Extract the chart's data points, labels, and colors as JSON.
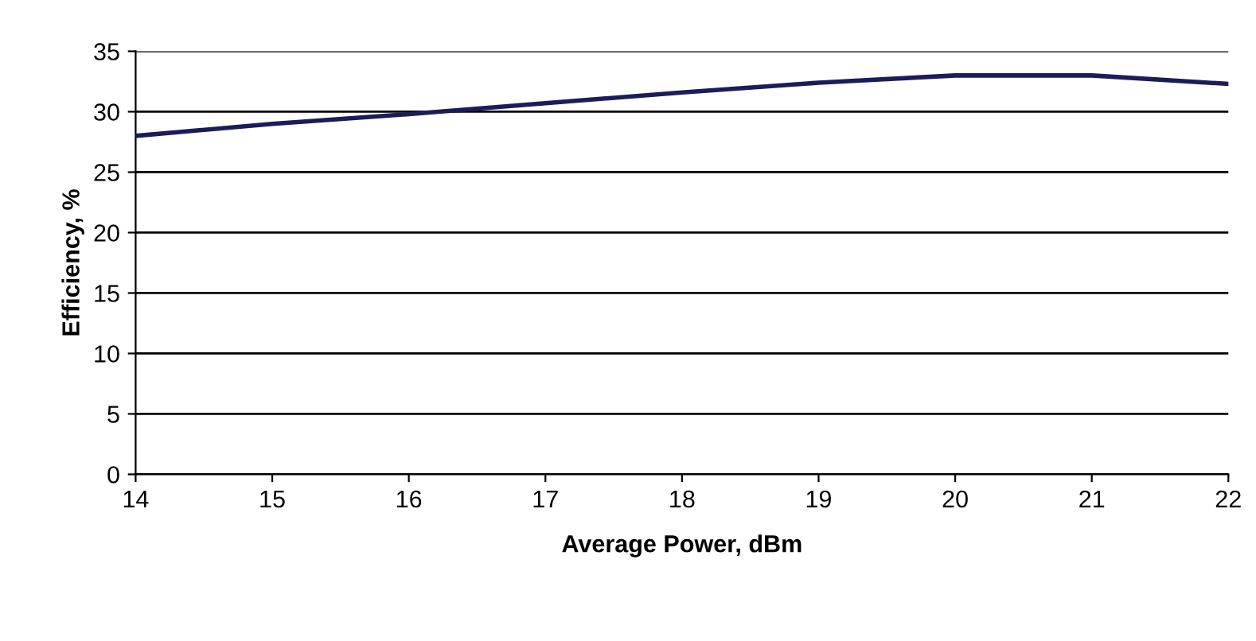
{
  "chart_data": {
    "type": "line",
    "xlabel": "Average Power, dBm",
    "ylabel": "Efficiency, %",
    "x": [
      14,
      15,
      16,
      17,
      18,
      19,
      20,
      21,
      22
    ],
    "series": [
      {
        "color": "#1c1c5a",
        "values": [
          28,
          29,
          29.8,
          30.7,
          31.6,
          32.4,
          33,
          33,
          32.3
        ]
      }
    ],
    "xlim": [
      14,
      22
    ],
    "ylim": [
      0,
      35
    ],
    "xticks": [
      14,
      15,
      16,
      17,
      18,
      19,
      20,
      21,
      22
    ],
    "yticks": [
      0,
      5,
      10,
      15,
      20,
      25,
      30,
      35
    ],
    "grid": "y",
    "legend": false,
    "marker": "none",
    "line_style": "solid"
  }
}
